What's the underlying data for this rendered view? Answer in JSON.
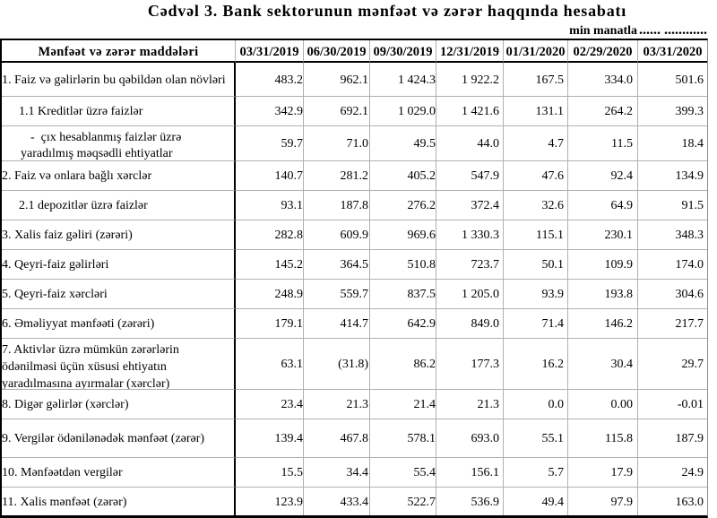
{
  "title": "Cədvəl 3. Bank sektorunun mənfəət və zərər haqqında hesabatı",
  "unit_note": {
    "label": "min manatla",
    "dots": "...... ............"
  },
  "table": {
    "header": {
      "items_label": "Mənfəət və zərər maddələri",
      "dates": [
        "03/31/2019",
        "06/30/2019",
        "09/30/2019",
        "12/31/2019",
        "01/31/2020",
        "02/29/2020",
        "03/31/2020"
      ]
    },
    "rows": [
      {
        "label": "1. Faiz və gəlirlərin bu qəbildən olan növləri",
        "indent": "main",
        "values": [
          "483.2",
          "962.1",
          "1 424.3",
          "1 922.2",
          "167.5",
          "334.0",
          "501.6"
        ]
      },
      {
        "label": "1.1 Kreditlər üzrə faizlər",
        "indent": "sub",
        "values": [
          "342.9",
          "692.1",
          "1 029.0",
          "1 421.6",
          "131.1",
          "264.2",
          "399.3"
        ]
      },
      {
        "label": "-  çıx hesablanmış faizlər üzrə yaradılmış məqsədli ehtiyatlar",
        "indent": "dash",
        "lines": [
          "-  çıx hesablanmış faizlər üzrə",
          "yaradılmış məqsədli ehtiyatlar"
        ],
        "values": [
          "59.7",
          "71.0",
          "49.5",
          "44.0",
          "4.7",
          "11.5",
          "18.4"
        ]
      },
      {
        "label": "2. Faiz və onlara bağlı xərclər",
        "indent": "main",
        "values": [
          "140.7",
          "281.2",
          "405.2",
          "547.9",
          "47.6",
          "92.4",
          "134.9"
        ]
      },
      {
        "label": "2.1 depozitlər üzrə faizlər",
        "indent": "sub",
        "values": [
          "93.1",
          "187.8",
          "276.2",
          "372.4",
          "32.6",
          "64.9",
          "91.5"
        ]
      },
      {
        "label": "3. Xalis faiz gəliri (zərəri)",
        "indent": "main",
        "values": [
          "282.8",
          "609.9",
          "969.6",
          "1 330.3",
          "115.1",
          "230.1",
          "348.3"
        ]
      },
      {
        "label": "4. Qeyri-faiz gəlirləri",
        "indent": "main",
        "values": [
          "145.2",
          "364.5",
          "510.8",
          "723.7",
          "50.1",
          "109.9",
          "174.0"
        ]
      },
      {
        "label": "5. Qeyri-faiz xərcləri",
        "indent": "main",
        "values": [
          "248.9",
          "559.7",
          "837.5",
          "1 205.0",
          "93.9",
          "193.8",
          "304.6"
        ]
      },
      {
        "label": "6. Əməliyyat mənfəəti (zərəri)",
        "indent": "main",
        "values": [
          "179.1",
          "414.7",
          "642.9",
          "849.0",
          "71.4",
          "146.2",
          "217.7"
        ]
      },
      {
        "label": "7. Aktivlər üzrə mümkün zərərlərin ödənilməsi üçün xüsusi ehtiyatın yaradılmasına ayırmalar (xərclər)",
        "indent": "main",
        "lines": [
          "7. Aktivlər üzrə mümkün zərərlərin",
          "ödənilməsi üçün xüsusi ehtiyatın",
          "yaradılmasına ayırmalar (xərclər)"
        ],
        "values": [
          "63.1",
          "(31.8)",
          "86.2",
          "177.3",
          "16.2",
          "30.4",
          "29.7"
        ]
      },
      {
        "label": "8. Digər gəlirlər (xərclər)",
        "indent": "main",
        "values": [
          "23.4",
          "21.3",
          "21.4",
          "21.3",
          "0.0",
          "0.00",
          "-0.01"
        ]
      },
      {
        "label": "9. Vergilər ödənilənədək mənfəət (zərər)",
        "indent": "main",
        "values": [
          "139.4",
          "467.8",
          "578.1",
          "693.0",
          "55.1",
          "115.8",
          "187.9"
        ]
      },
      {
        "label": "10. Mənfəətdən vergilər",
        "indent": "main",
        "values": [
          "15.5",
          "34.4",
          "55.4",
          "156.1",
          "5.7",
          "17.9",
          "24.9"
        ]
      },
      {
        "label": "11. Xalis mənfəət (zərər)",
        "indent": "main",
        "values": [
          "123.9",
          "433.4",
          "522.7",
          "536.9",
          "49.4",
          "97.9",
          "163.0"
        ]
      }
    ]
  },
  "colors": {
    "border_strong": "#000000",
    "grid_line": "#b0b0b0",
    "text": "#000000",
    "background": "#ffffff"
  }
}
